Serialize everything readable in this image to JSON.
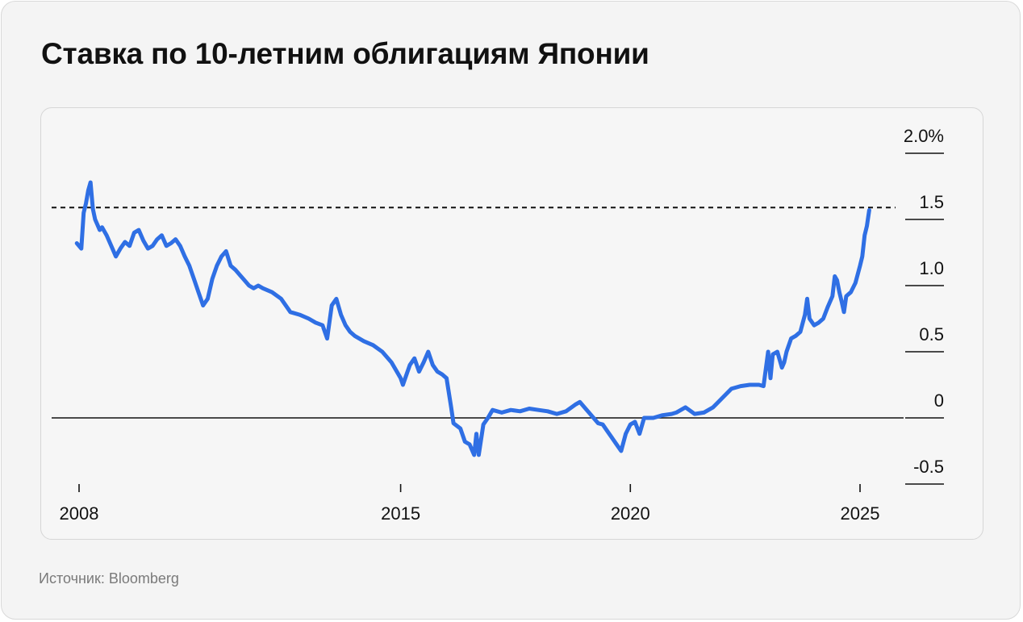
{
  "title": "Ставка по 10-летним облигациям Японии",
  "source": "Источник: Bloomberg",
  "colors": {
    "line": "#2f6fe4",
    "axis": "#111111",
    "card_bg": "#f4f4f4"
  },
  "chart_data": {
    "type": "line",
    "title": "Ставка по 10-летним облигациям Японии",
    "xlabel": "",
    "ylabel": "",
    "x_ticks": [
      {
        "value": 2008,
        "label": "2008"
      },
      {
        "value": 2015,
        "label": "2015"
      },
      {
        "value": 2020,
        "label": "2020"
      },
      {
        "value": 2025,
        "label": "2025"
      }
    ],
    "y_ticks": [
      {
        "value": 2.0,
        "label": "2.0%"
      },
      {
        "value": 1.5,
        "label": "1.5"
      },
      {
        "value": 1.0,
        "label": "1.0"
      },
      {
        "value": 0.5,
        "label": "0.5"
      },
      {
        "value": 0,
        "label": "0"
      },
      {
        "value": -0.5,
        "label": "-0.5"
      }
    ],
    "xlim": [
      2007.4,
      2026.0
    ],
    "ylim": [
      -0.5,
      2.0
    ],
    "reference_lines": [
      {
        "value": 1.59,
        "style": "dashed"
      },
      {
        "value": 0,
        "style": "solid"
      }
    ],
    "grid": false,
    "series": [
      {
        "x": [
          2007.95,
          2008.05,
          2008.1,
          2008.15,
          2008.2,
          2008.25,
          2008.3,
          2008.35,
          2008.4,
          2008.45,
          2008.5,
          2008.6,
          2008.7,
          2008.8,
          2008.9,
          2009.0,
          2009.1,
          2009.2,
          2009.3,
          2009.4,
          2009.5,
          2009.6,
          2009.7,
          2009.8,
          2009.9,
          2010.0,
          2010.1,
          2010.2,
          2010.3,
          2010.4,
          2010.5,
          2010.6,
          2010.7,
          2010.8,
          2010.9,
          2011.0,
          2011.1,
          2011.2,
          2011.3,
          2011.4,
          2011.5,
          2011.6,
          2011.7,
          2011.8,
          2011.9,
          2012.0,
          2012.2,
          2012.4,
          2012.6,
          2012.8,
          2013.0,
          2013.15,
          2013.3,
          2013.4,
          2013.5,
          2013.6,
          2013.7,
          2013.8,
          2013.9,
          2014.0,
          2014.2,
          2014.4,
          2014.6,
          2014.8,
          2015.0,
          2015.05,
          2015.2,
          2015.3,
          2015.4,
          2015.5,
          2015.6,
          2015.7,
          2015.8,
          2015.9,
          2016.0,
          2016.1,
          2016.15,
          2016.3,
          2016.4,
          2016.5,
          2016.6,
          2016.65,
          2016.7,
          2016.8,
          2016.9,
          2017.0,
          2017.2,
          2017.4,
          2017.6,
          2017.8,
          2018.0,
          2018.2,
          2018.4,
          2018.6,
          2018.8,
          2018.9,
          2019.0,
          2019.1,
          2019.2,
          2019.3,
          2019.4,
          2019.5,
          2019.6,
          2019.7,
          2019.8,
          2019.9,
          2020.0,
          2020.1,
          2020.2,
          2020.3,
          2020.5,
          2020.7,
          2020.9,
          2021.0,
          2021.2,
          2021.4,
          2021.6,
          2021.8,
          2022.0,
          2022.2,
          2022.4,
          2022.6,
          2022.8,
          2022.9,
          2023.0,
          2023.05,
          2023.1,
          2023.2,
          2023.3,
          2023.35,
          2023.4,
          2023.5,
          2023.6,
          2023.7,
          2023.8,
          2023.85,
          2023.9,
          2024.0,
          2024.1,
          2024.2,
          2024.3,
          2024.4,
          2024.45,
          2024.5,
          2024.55,
          2024.6,
          2024.65,
          2024.7,
          2024.8,
          2024.9,
          2025.0,
          2025.05,
          2025.1,
          2025.15,
          2025.2
        ],
        "y": [
          1.32,
          1.28,
          1.55,
          1.62,
          1.72,
          1.78,
          1.58,
          1.5,
          1.46,
          1.42,
          1.44,
          1.38,
          1.3,
          1.22,
          1.28,
          1.33,
          1.3,
          1.4,
          1.42,
          1.34,
          1.28,
          1.3,
          1.35,
          1.38,
          1.3,
          1.32,
          1.35,
          1.3,
          1.22,
          1.15,
          1.05,
          0.95,
          0.85,
          0.9,
          1.05,
          1.15,
          1.22,
          1.26,
          1.15,
          1.12,
          1.08,
          1.04,
          1.0,
          0.98,
          1.0,
          0.98,
          0.95,
          0.9,
          0.8,
          0.78,
          0.75,
          0.72,
          0.7,
          0.6,
          0.85,
          0.9,
          0.78,
          0.7,
          0.65,
          0.62,
          0.58,
          0.55,
          0.5,
          0.42,
          0.3,
          0.25,
          0.4,
          0.45,
          0.35,
          0.42,
          0.5,
          0.4,
          0.35,
          0.33,
          0.3,
          0.08,
          -0.04,
          -0.08,
          -0.18,
          -0.2,
          -0.28,
          -0.12,
          -0.28,
          -0.05,
          0.0,
          0.06,
          0.04,
          0.06,
          0.05,
          0.07,
          0.06,
          0.05,
          0.03,
          0.05,
          0.1,
          0.12,
          0.08,
          0.04,
          0.0,
          -0.04,
          -0.05,
          -0.1,
          -0.15,
          -0.2,
          -0.25,
          -0.12,
          -0.05,
          -0.03,
          -0.12,
          0.0,
          0.0,
          0.02,
          0.03,
          0.04,
          0.08,
          0.03,
          0.04,
          0.08,
          0.15,
          0.22,
          0.24,
          0.25,
          0.25,
          0.24,
          0.5,
          0.3,
          0.48,
          0.5,
          0.38,
          0.42,
          0.5,
          0.6,
          0.62,
          0.65,
          0.78,
          0.9,
          0.75,
          0.7,
          0.72,
          0.75,
          0.84,
          0.92,
          1.07,
          1.04,
          0.95,
          0.88,
          0.8,
          0.92,
          0.95,
          1.02,
          1.15,
          1.22,
          1.38,
          1.45,
          1.57
        ]
      }
    ]
  }
}
